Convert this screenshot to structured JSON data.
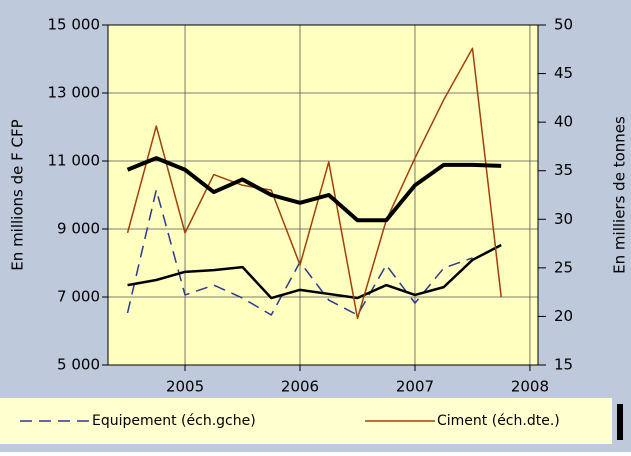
{
  "chart_data": {
    "type": "line",
    "y_label": "En millions de F CFP",
    "y2_label": "En milliers de tonnes",
    "x": [
      2004.5,
      2004.75,
      2005,
      2005.25,
      2005.5,
      2005.75,
      2006,
      2006.25,
      2006.5,
      2006.75,
      2007,
      2007.25,
      2007.5,
      2007.75
    ],
    "xlim": [
      2004.33,
      2008.07
    ],
    "xticks": [
      2005,
      2006,
      2007,
      2008
    ],
    "ylim": [
      5000,
      15000
    ],
    "yticks": [
      {
        "value": 5000,
        "label": "5 000"
      },
      {
        "value": 7000,
        "label": "7 000"
      },
      {
        "value": 9000,
        "label": "9 000"
      },
      {
        "value": 11000,
        "label": "11 000"
      },
      {
        "value": 13000,
        "label": "13 000"
      },
      {
        "value": 15000,
        "label": "15 000"
      }
    ],
    "y2lim": [
      15,
      50
    ],
    "y2ticks": [
      15,
      20,
      25,
      30,
      35,
      40,
      45,
      50
    ],
    "grid": true,
    "series": [
      {
        "name": "Equipement (éch.gche)",
        "color": "#2b3990",
        "dash": true,
        "width": 1.5,
        "values": [
          6530,
          10150,
          7060,
          7350,
          6970,
          6470,
          8030,
          6910,
          6470,
          7940,
          6820,
          7850,
          8150,
          null
        ]
      },
      {
        "color": "#000000",
        "width": 2.5,
        "values": [
          7350,
          7500,
          7740,
          7790,
          7880,
          6970,
          7210,
          7090,
          6970,
          7350,
          7060,
          7290,
          8090,
          8530
        ]
      },
      {
        "name": "Ciment (éch.dte.)",
        "color": "#a0400a",
        "width": 1.5,
        "axis": "y2",
        "values": [
          28.6,
          39.6,
          28.6,
          34.6,
          33.5,
          33.0,
          25.3,
          35.9,
          19.8,
          29.9,
          36.3,
          42.3,
          47.6,
          22.0
        ]
      },
      {
        "color": "#000000",
        "width": 4,
        "axis": "y2",
        "values": [
          35.1,
          36.3,
          35.1,
          32.8,
          34.1,
          32.5,
          31.7,
          32.5,
          29.9,
          29.9,
          33.5,
          35.6,
          35.6,
          35.5
        ]
      }
    ]
  }
}
